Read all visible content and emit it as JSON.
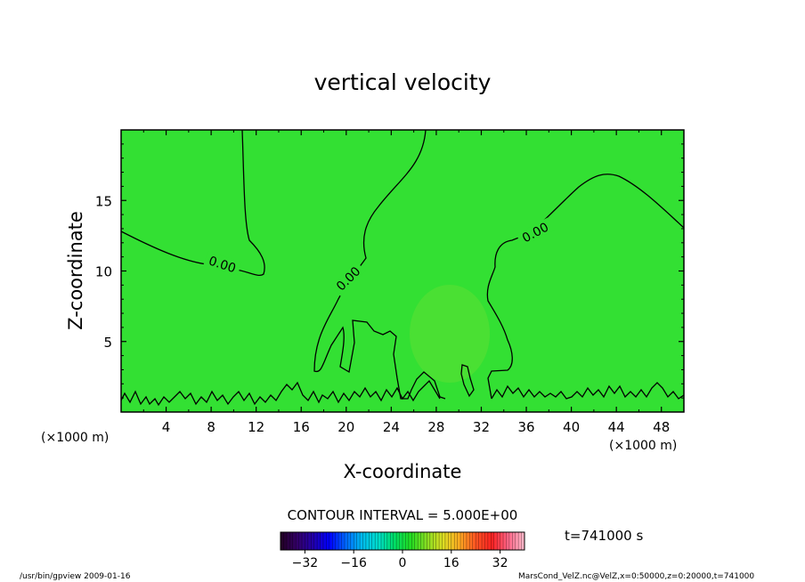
{
  "chart_data": {
    "type": "heatmap",
    "title": "vertical velocity",
    "xlabel": "X-coordinate",
    "ylabel": "Z-coordinate",
    "x_unit_left": "(×1000 m)",
    "x_unit_right": "(×1000 m)",
    "xlim": [
      0,
      50
    ],
    "ylim": [
      0,
      20
    ],
    "x_ticks": [
      4,
      8,
      12,
      16,
      20,
      24,
      28,
      32,
      36,
      40,
      44,
      48
    ],
    "y_ticks": [
      5,
      10,
      15
    ],
    "contour_labels": [
      "0.00",
      "0.00",
      "0.00"
    ],
    "contour_interval_text": "CONTOUR INTERVAL = 5.000E+00",
    "colorbar": {
      "range": [
        -40,
        40
      ],
      "ticks": [
        -32,
        -16,
        0,
        16,
        32
      ],
      "colors": [
        "#220022",
        "#330066",
        "#2200aa",
        "#0000ff",
        "#0066ff",
        "#00bbee",
        "#00ddcc",
        "#00dd66",
        "#22dd22",
        "#88dd22",
        "#dddd22",
        "#ffaa22",
        "#ff5522",
        "#ff2222",
        "#ff6688",
        "#ffbbcc"
      ]
    },
    "field_color": "#33e033",
    "time_label": "t=741000 s",
    "footer_left": "/usr/bin/gpview  2009-01-16",
    "footer_right": "MarsCond_VelZ.nc@VelZ,x=0:50000,z=0:20000,t=741000"
  }
}
